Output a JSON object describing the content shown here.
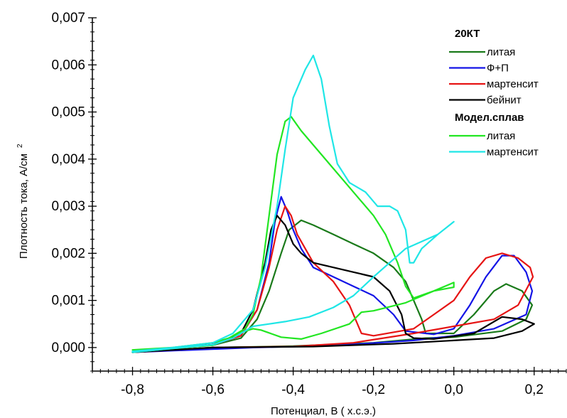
{
  "chart_data": {
    "type": "line",
    "xlabel": "Потенциал, В   ( х.с.э.)",
    "ylabel": "Плотность тока, А/см",
    "ylabel_superscript": "2",
    "xlim": [
      -0.9,
      0.28
    ],
    "ylim": [
      -0.0005,
      0.007
    ],
    "x_ticks": [
      -0.8,
      -0.6,
      -0.4,
      -0.2,
      0.0,
      0.2
    ],
    "x_tick_labels": [
      "-0,8",
      "-0,6",
      "-0,4",
      "-0,2",
      "0,0",
      "0,2"
    ],
    "y_ticks": [
      0.0,
      0.001,
      0.002,
      0.003,
      0.004,
      0.005,
      0.006,
      0.007
    ],
    "y_tick_labels": [
      "0,000",
      "0,001",
      "0,002",
      "0,003",
      "0,004",
      "0,005",
      "0,006",
      "0,007"
    ],
    "grid": false,
    "legend_position": "top-right",
    "legend": [
      {
        "group": "20КТ",
        "entries": [
          {
            "label": "литая",
            "color": "#1a7a1a"
          },
          {
            "label": "Ф+П",
            "color": "#1414e6"
          },
          {
            "label": "мартенсит",
            "color": "#e61414"
          },
          {
            "label": "бейнит",
            "color": "#000000"
          }
        ]
      },
      {
        "group": "Модел.сплав",
        "entries": [
          {
            "label": "литая",
            "color": "#22e622"
          },
          {
            "label": "мартенсит",
            "color": "#1fe6e6"
          }
        ]
      }
    ],
    "series": [
      {
        "name": "литая",
        "group": "20КТ",
        "color": "#1a7a1a",
        "points": [
          [
            -0.8,
            -0.0001
          ],
          [
            -0.7,
            -2e-05
          ],
          [
            -0.6,
            5e-05
          ],
          [
            -0.53,
            0.0002
          ],
          [
            -0.49,
            0.0006
          ],
          [
            -0.46,
            0.0012
          ],
          [
            -0.43,
            0.002
          ],
          [
            -0.41,
            0.0025
          ],
          [
            -0.38,
            0.0027
          ],
          [
            -0.35,
            0.0026
          ],
          [
            -0.3,
            0.0024
          ],
          [
            -0.25,
            0.0022
          ],
          [
            -0.2,
            0.002
          ],
          [
            -0.15,
            0.0017
          ],
          [
            -0.12,
            0.0014
          ],
          [
            -0.1,
            0.001
          ],
          [
            -0.08,
            0.0006
          ],
          [
            -0.07,
            0.0003
          ],
          [
            0.0,
            0.0003
          ],
          [
            0.05,
            0.0007
          ],
          [
            0.1,
            0.0012
          ],
          [
            0.13,
            0.00135
          ],
          [
            0.17,
            0.0012
          ],
          [
            0.195,
            0.0009
          ],
          [
            0.18,
            0.0006
          ],
          [
            0.12,
            0.00035
          ],
          [
            0.0,
            0.00022
          ],
          [
            -0.07,
            0.0002
          ],
          [
            -0.2,
            0.0001
          ],
          [
            -0.4,
            3e-05
          ],
          [
            -0.6,
            0.0
          ],
          [
            -0.8,
            -0.0001
          ]
        ]
      },
      {
        "name": "Ф+П",
        "group": "20КТ",
        "color": "#1414e6",
        "points": [
          [
            -0.8,
            -0.0001
          ],
          [
            -0.7,
            -2e-05
          ],
          [
            -0.6,
            6e-05
          ],
          [
            -0.53,
            0.00025
          ],
          [
            -0.49,
            0.0008
          ],
          [
            -0.46,
            0.0018
          ],
          [
            -0.445,
            0.0027
          ],
          [
            -0.43,
            0.0032
          ],
          [
            -0.415,
            0.0029
          ],
          [
            -0.4,
            0.0025
          ],
          [
            -0.38,
            0.0021
          ],
          [
            -0.35,
            0.0017
          ],
          [
            -0.3,
            0.0015
          ],
          [
            -0.25,
            0.0013
          ],
          [
            -0.2,
            0.0011
          ],
          [
            -0.15,
            0.0007
          ],
          [
            -0.12,
            0.00035
          ],
          [
            -0.05,
            0.00028
          ],
          [
            0.0,
            0.0004
          ],
          [
            0.04,
            0.0009
          ],
          [
            0.08,
            0.0015
          ],
          [
            0.12,
            0.00195
          ],
          [
            0.15,
            0.00195
          ],
          [
            0.18,
            0.0016
          ],
          [
            0.195,
            0.0012
          ],
          [
            0.18,
            0.0007
          ],
          [
            0.1,
            0.0004
          ],
          [
            0.0,
            0.00025
          ],
          [
            -0.1,
            0.00015
          ],
          [
            -0.3,
            4e-05
          ],
          [
            -0.5,
            0.0
          ],
          [
            -0.8,
            -0.0001
          ]
        ]
      },
      {
        "name": "мартенсит",
        "group": "20КТ",
        "color": "#e61414",
        "points": [
          [
            -0.8,
            -0.0001
          ],
          [
            -0.7,
            -2e-05
          ],
          [
            -0.6,
            6e-05
          ],
          [
            -0.53,
            0.00025
          ],
          [
            -0.49,
            0.0008
          ],
          [
            -0.46,
            0.0017
          ],
          [
            -0.44,
            0.0025
          ],
          [
            -0.42,
            0.003
          ],
          [
            -0.405,
            0.0028
          ],
          [
            -0.39,
            0.0024
          ],
          [
            -0.37,
            0.0021
          ],
          [
            -0.35,
            0.0018
          ],
          [
            -0.3,
            0.0014
          ],
          [
            -0.26,
            0.0009
          ],
          [
            -0.23,
            0.0003
          ],
          [
            -0.2,
            0.00025
          ],
          [
            -0.1,
            0.0004
          ],
          [
            -0.05,
            0.0007
          ],
          [
            0.0,
            0.001
          ],
          [
            0.04,
            0.0015
          ],
          [
            0.08,
            0.0019
          ],
          [
            0.12,
            0.002
          ],
          [
            0.16,
            0.0019
          ],
          [
            0.19,
            0.0017
          ],
          [
            0.197,
            0.0015
          ],
          [
            0.16,
            0.0009
          ],
          [
            0.1,
            0.0006
          ],
          [
            0.0,
            0.00045
          ],
          [
            -0.1,
            0.0003
          ],
          [
            -0.25,
            0.0001
          ],
          [
            -0.4,
            2e-05
          ],
          [
            -0.6,
            0.0
          ],
          [
            -0.8,
            -0.0001
          ]
        ]
      },
      {
        "name": "бейнит",
        "group": "20КТ",
        "color": "#000000",
        "points": [
          [
            -0.8,
            -0.0001
          ],
          [
            -0.7,
            -2e-05
          ],
          [
            -0.6,
            6e-05
          ],
          [
            -0.53,
            0.0003
          ],
          [
            -0.5,
            0.0008
          ],
          [
            -0.47,
            0.0018
          ],
          [
            -0.455,
            0.0025
          ],
          [
            -0.44,
            0.0028
          ],
          [
            -0.42,
            0.0026
          ],
          [
            -0.4,
            0.0022
          ],
          [
            -0.38,
            0.002
          ],
          [
            -0.35,
            0.0018
          ],
          [
            -0.3,
            0.0017
          ],
          [
            -0.25,
            0.0016
          ],
          [
            -0.2,
            0.0015
          ],
          [
            -0.16,
            0.0012
          ],
          [
            -0.13,
            0.0007
          ],
          [
            -0.12,
            0.0003
          ],
          [
            -0.1,
            0.0002
          ],
          [
            -0.05,
            0.00018
          ],
          [
            0.05,
            0.0003
          ],
          [
            0.12,
            0.00065
          ],
          [
            0.17,
            0.0006
          ],
          [
            0.2,
            0.0005
          ],
          [
            0.17,
            0.00035
          ],
          [
            0.1,
            0.0002
          ],
          [
            0.0,
            0.00015
          ],
          [
            -0.15,
            8e-05
          ],
          [
            -0.35,
            2e-05
          ],
          [
            -0.6,
            0.0
          ],
          [
            -0.8,
            -0.0001
          ]
        ]
      },
      {
        "name": "литая",
        "group": "Модел.сплав",
        "color": "#22e622",
        "points": [
          [
            -0.8,
            -5e-05
          ],
          [
            -0.7,
            0.0
          ],
          [
            -0.6,
            0.0001
          ],
          [
            -0.56,
            0.0002
          ],
          [
            -0.52,
            0.0004
          ],
          [
            -0.5,
            0.0007
          ],
          [
            -0.48,
            0.0015
          ],
          [
            -0.46,
            0.0028
          ],
          [
            -0.44,
            0.0041
          ],
          [
            -0.42,
            0.0048
          ],
          [
            -0.405,
            0.0049
          ],
          [
            -0.38,
            0.0046
          ],
          [
            -0.34,
            0.0042
          ],
          [
            -0.3,
            0.0038
          ],
          [
            -0.25,
            0.0033
          ],
          [
            -0.2,
            0.0028
          ],
          [
            -0.17,
            0.0024
          ],
          [
            -0.14,
            0.0018
          ],
          [
            -0.12,
            0.0013
          ],
          [
            -0.1,
            0.00105
          ],
          [
            -0.05,
            0.0012
          ],
          [
            0.0,
            0.00138
          ],
          [
            0.0,
            0.00128
          ],
          [
            -0.05,
            0.0012
          ],
          [
            -0.12,
            0.00095
          ],
          [
            -0.2,
            0.00078
          ],
          [
            -0.23,
            0.00075
          ],
          [
            -0.26,
            0.0005
          ],
          [
            -0.33,
            0.0003
          ],
          [
            -0.38,
            0.00018
          ],
          [
            -0.43,
            0.00022
          ],
          [
            -0.48,
            0.00037
          ],
          [
            -0.5,
            0.0004
          ],
          [
            -0.53,
            0.00032
          ],
          [
            -0.6,
            5e-05
          ],
          [
            -0.7,
            -2e-05
          ],
          [
            -0.8,
            -0.0001
          ]
        ]
      },
      {
        "name": "мартенсит",
        "group": "Модел.сплав",
        "color": "#1fe6e6",
        "points": [
          [
            -0.8,
            -8e-05
          ],
          [
            -0.7,
            0.0
          ],
          [
            -0.6,
            0.0001
          ],
          [
            -0.55,
            0.0003
          ],
          [
            -0.5,
            0.0008
          ],
          [
            -0.47,
            0.0017
          ],
          [
            -0.44,
            0.003
          ],
          [
            -0.42,
            0.0042
          ],
          [
            -0.4,
            0.0053
          ],
          [
            -0.37,
            0.0059
          ],
          [
            -0.35,
            0.0062
          ],
          [
            -0.33,
            0.0057
          ],
          [
            -0.31,
            0.0047
          ],
          [
            -0.29,
            0.0039
          ],
          [
            -0.26,
            0.0035
          ],
          [
            -0.22,
            0.0033
          ],
          [
            -0.19,
            0.003
          ],
          [
            -0.16,
            0.003
          ],
          [
            -0.14,
            0.0029
          ],
          [
            -0.12,
            0.0025
          ],
          [
            -0.11,
            0.0018
          ],
          [
            -0.1,
            0.0018
          ],
          [
            -0.08,
            0.0021
          ],
          [
            -0.04,
            0.0024
          ],
          [
            0.0,
            0.00267
          ],
          [
            -0.04,
            0.0024
          ],
          [
            -0.12,
            0.0021
          ],
          [
            -0.2,
            0.0015
          ],
          [
            -0.25,
            0.0011
          ],
          [
            -0.3,
            0.00085
          ],
          [
            -0.36,
            0.00065
          ],
          [
            -0.42,
            0.00055
          ],
          [
            -0.46,
            0.0005
          ],
          [
            -0.5,
            0.00045
          ],
          [
            -0.55,
            0.0002
          ],
          [
            -0.6,
            6e-05
          ],
          [
            -0.7,
            -2e-05
          ],
          [
            -0.8,
            -0.0001
          ]
        ]
      }
    ]
  }
}
